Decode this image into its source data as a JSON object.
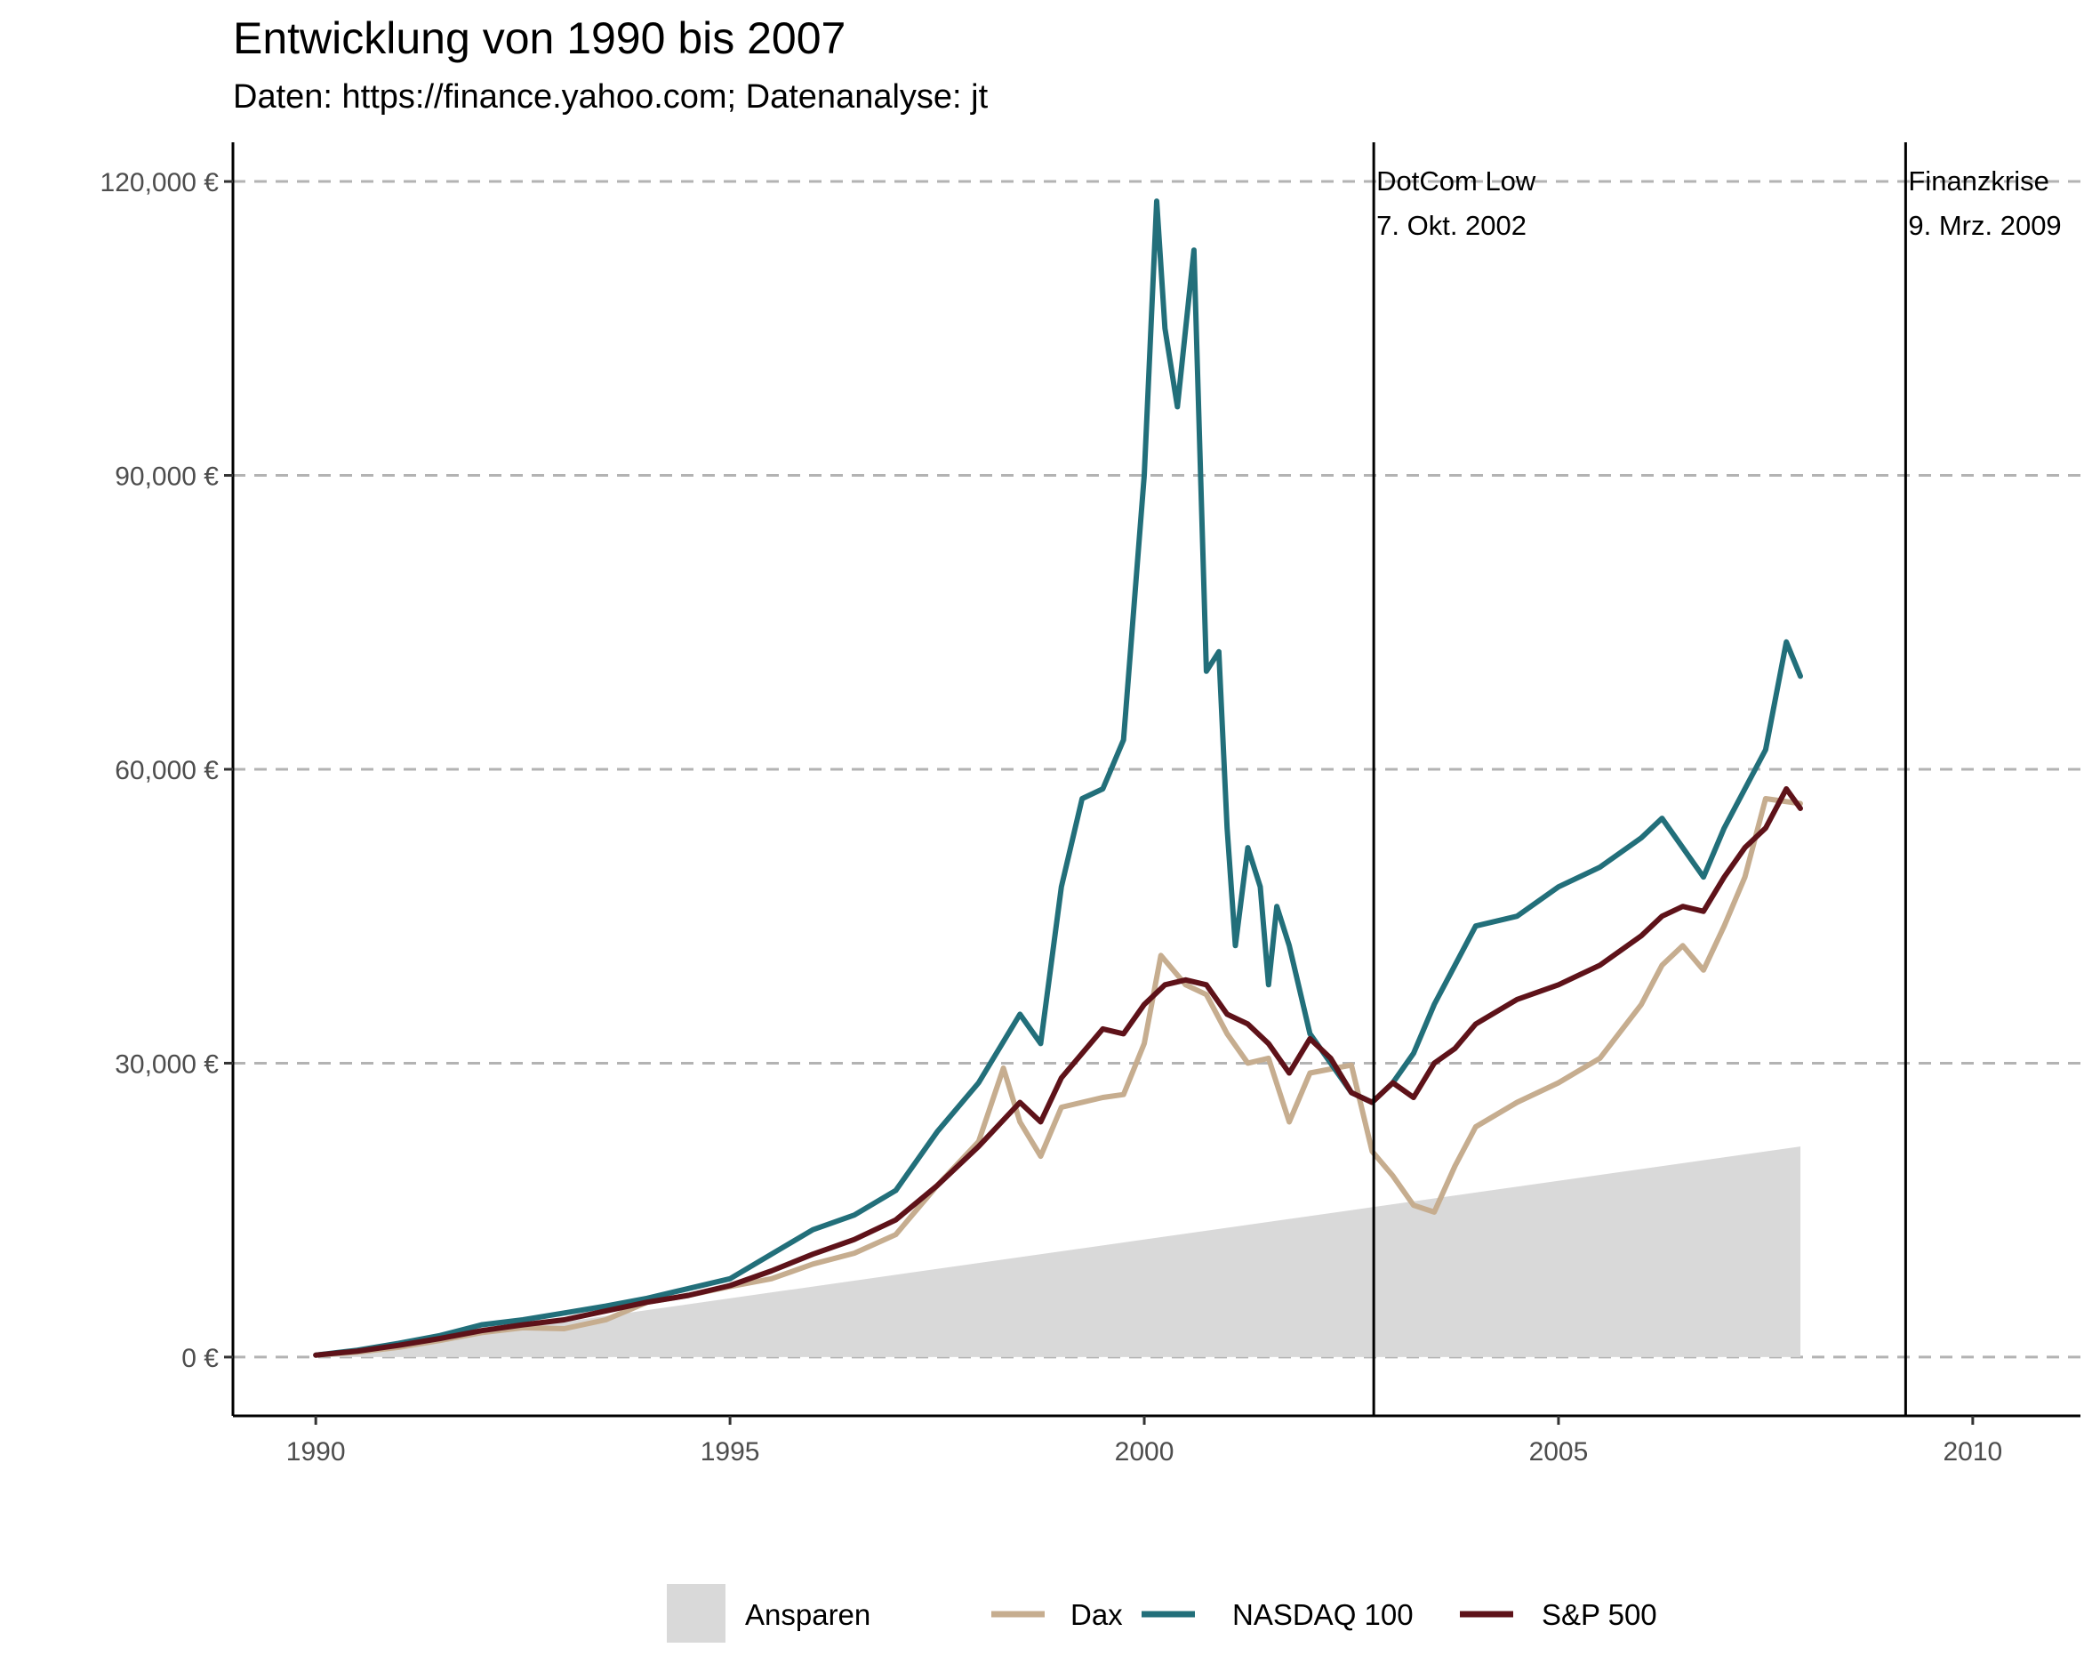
{
  "title": "Entwicklung von 1990 bis 2007",
  "subtitle": "Daten: https://finance.yahoo.com; Datenanalyse: jt",
  "colors": {
    "Ansparen": "#d9d9d9",
    "Dax": "#c6ad8f",
    "NASDAQ 100": "#226f7a",
    "S&P 500": "#5e1219",
    "grid": "#b3b3b3",
    "axis": "#000000"
  },
  "chart_data": {
    "type": "line",
    "title": "Entwicklung von 1990 bis 2007",
    "subtitle": "Daten: https://finance.yahoo.com; Datenanalyse: jt",
    "xlabel": "",
    "ylabel": "",
    "xlim": [
      1989,
      2011.3
    ],
    "ylim": [
      -6000,
      124000
    ],
    "x_ticks": [
      1990,
      1995,
      2000,
      2005,
      2010
    ],
    "x_tick_labels": [
      "1990",
      "1995",
      "2000",
      "2005",
      "2010"
    ],
    "y_ticks": [
      0,
      30000,
      60000,
      90000,
      120000
    ],
    "y_tick_labels": [
      "0 €",
      "30,000 €",
      "60,000 €",
      "90,000 €",
      "120,000 €"
    ],
    "grid": "horizontal dashed",
    "legend_position": "bottom",
    "area": {
      "name": "Ansparen",
      "x": [
        1990,
        2007.92
      ],
      "y": [
        0,
        21500
      ]
    },
    "series": [
      {
        "name": "Dax",
        "x": [
          1990,
          1990.5,
          1991,
          1991.5,
          1992,
          1992.5,
          1993,
          1993.5,
          1994,
          1994.5,
          1995,
          1995.5,
          1996,
          1996.5,
          1997,
          1997.5,
          1998,
          1998.3,
          1998.5,
          1998.75,
          1999,
          1999.5,
          1999.75,
          2000,
          2000.2,
          2000.5,
          2000.75,
          2001,
          2001.25,
          2001.5,
          2001.75,
          2002,
          2002.5,
          2002.75,
          2003,
          2003.25,
          2003.5,
          2003.75,
          2004,
          2004.5,
          2005,
          2005.5,
          2006,
          2006.25,
          2006.5,
          2006.75,
          2007,
          2007.25,
          2007.5,
          2007.92
        ],
        "y": [
          200,
          500,
          1000,
          1700,
          2500,
          3000,
          2900,
          3800,
          5600,
          6300,
          7200,
          8000,
          9500,
          10600,
          12500,
          17500,
          22000,
          29500,
          24000,
          20500,
          25500,
          26500,
          26800,
          32000,
          41000,
          38000,
          37000,
          33000,
          30000,
          30500,
          24000,
          29000,
          29800,
          21000,
          18500,
          15500,
          14800,
          19500,
          23500,
          26000,
          28000,
          30500,
          36000,
          40000,
          42000,
          39500,
          44000,
          49000,
          57000,
          56500
        ]
      },
      {
        "name": "NASDAQ 100",
        "x": [
          1990,
          1990.5,
          1991,
          1991.5,
          1992,
          1992.5,
          1993,
          1993.5,
          1994,
          1994.5,
          1995,
          1995.5,
          1996,
          1996.5,
          1997,
          1997.5,
          1998,
          1998.5,
          1998.75,
          1999,
          1999.25,
          1999.5,
          1999.75,
          2000,
          2000.15,
          2000.25,
          2000.4,
          2000.6,
          2000.75,
          2000.9,
          2001,
          2001.1,
          2001.25,
          2001.4,
          2001.5,
          2001.6,
          2001.75,
          2002,
          2002.25,
          2002.5,
          2002.75,
          2003,
          2003.25,
          2003.5,
          2003.75,
          2004,
          2004.5,
          2005,
          2005.5,
          2006,
          2006.25,
          2006.5,
          2006.75,
          2007,
          2007.25,
          2007.5,
          2007.75,
          2007.92
        ],
        "y": [
          200,
          700,
          1400,
          2200,
          3300,
          3800,
          4500,
          5200,
          6000,
          7000,
          8000,
          10500,
          13000,
          14500,
          17000,
          23000,
          28000,
          35000,
          32000,
          48000,
          57000,
          58000,
          63000,
          90000,
          118000,
          105000,
          97000,
          113000,
          70000,
          72000,
          54000,
          42000,
          52000,
          48000,
          38000,
          46000,
          42000,
          33000,
          30000,
          27000,
          26000,
          28000,
          31000,
          36000,
          40000,
          44000,
          45000,
          48000,
          50000,
          53000,
          55000,
          52000,
          49000,
          54000,
          58000,
          62000,
          73000,
          69500
        ]
      },
      {
        "name": "S&P 500",
        "x": [
          1990,
          1990.5,
          1991,
          1991.5,
          1992,
          1992.5,
          1993,
          1993.5,
          1994,
          1994.5,
          1995,
          1995.5,
          1996,
          1996.5,
          1997,
          1997.5,
          1998,
          1998.5,
          1998.75,
          1999,
          1999.25,
          1999.5,
          1999.75,
          2000,
          2000.25,
          2000.5,
          2000.75,
          2001,
          2001.25,
          2001.5,
          2001.75,
          2002,
          2002.25,
          2002.5,
          2002.75,
          2003,
          2003.25,
          2003.5,
          2003.75,
          2004,
          2004.5,
          2005,
          2005.5,
          2006,
          2006.25,
          2006.5,
          2006.75,
          2007,
          2007.25,
          2007.5,
          2007.75,
          2007.92
        ],
        "y": [
          200,
          600,
          1200,
          1900,
          2700,
          3300,
          3800,
          4700,
          5600,
          6300,
          7300,
          8800,
          10500,
          12000,
          14000,
          17500,
          21500,
          26000,
          24000,
          28500,
          31000,
          33500,
          33000,
          36000,
          38000,
          38500,
          38000,
          35000,
          34000,
          32000,
          29000,
          32500,
          30500,
          27000,
          26000,
          28000,
          26500,
          30000,
          31500,
          34000,
          36500,
          38000,
          40000,
          43000,
          45000,
          46000,
          45500,
          49000,
          52000,
          54000,
          58000,
          56000
        ]
      }
    ],
    "vlines": [
      {
        "x": 2002.77,
        "label_line1": "DotCom Low",
        "label_line2": "7. Okt. 2002"
      },
      {
        "x": 2009.19,
        "label_line1": "Finanzkrise",
        "label_line2": "9. Mrz. 2009"
      }
    ],
    "legend": [
      "Ansparen",
      "Dax",
      "NASDAQ 100",
      "S&P 500"
    ]
  }
}
